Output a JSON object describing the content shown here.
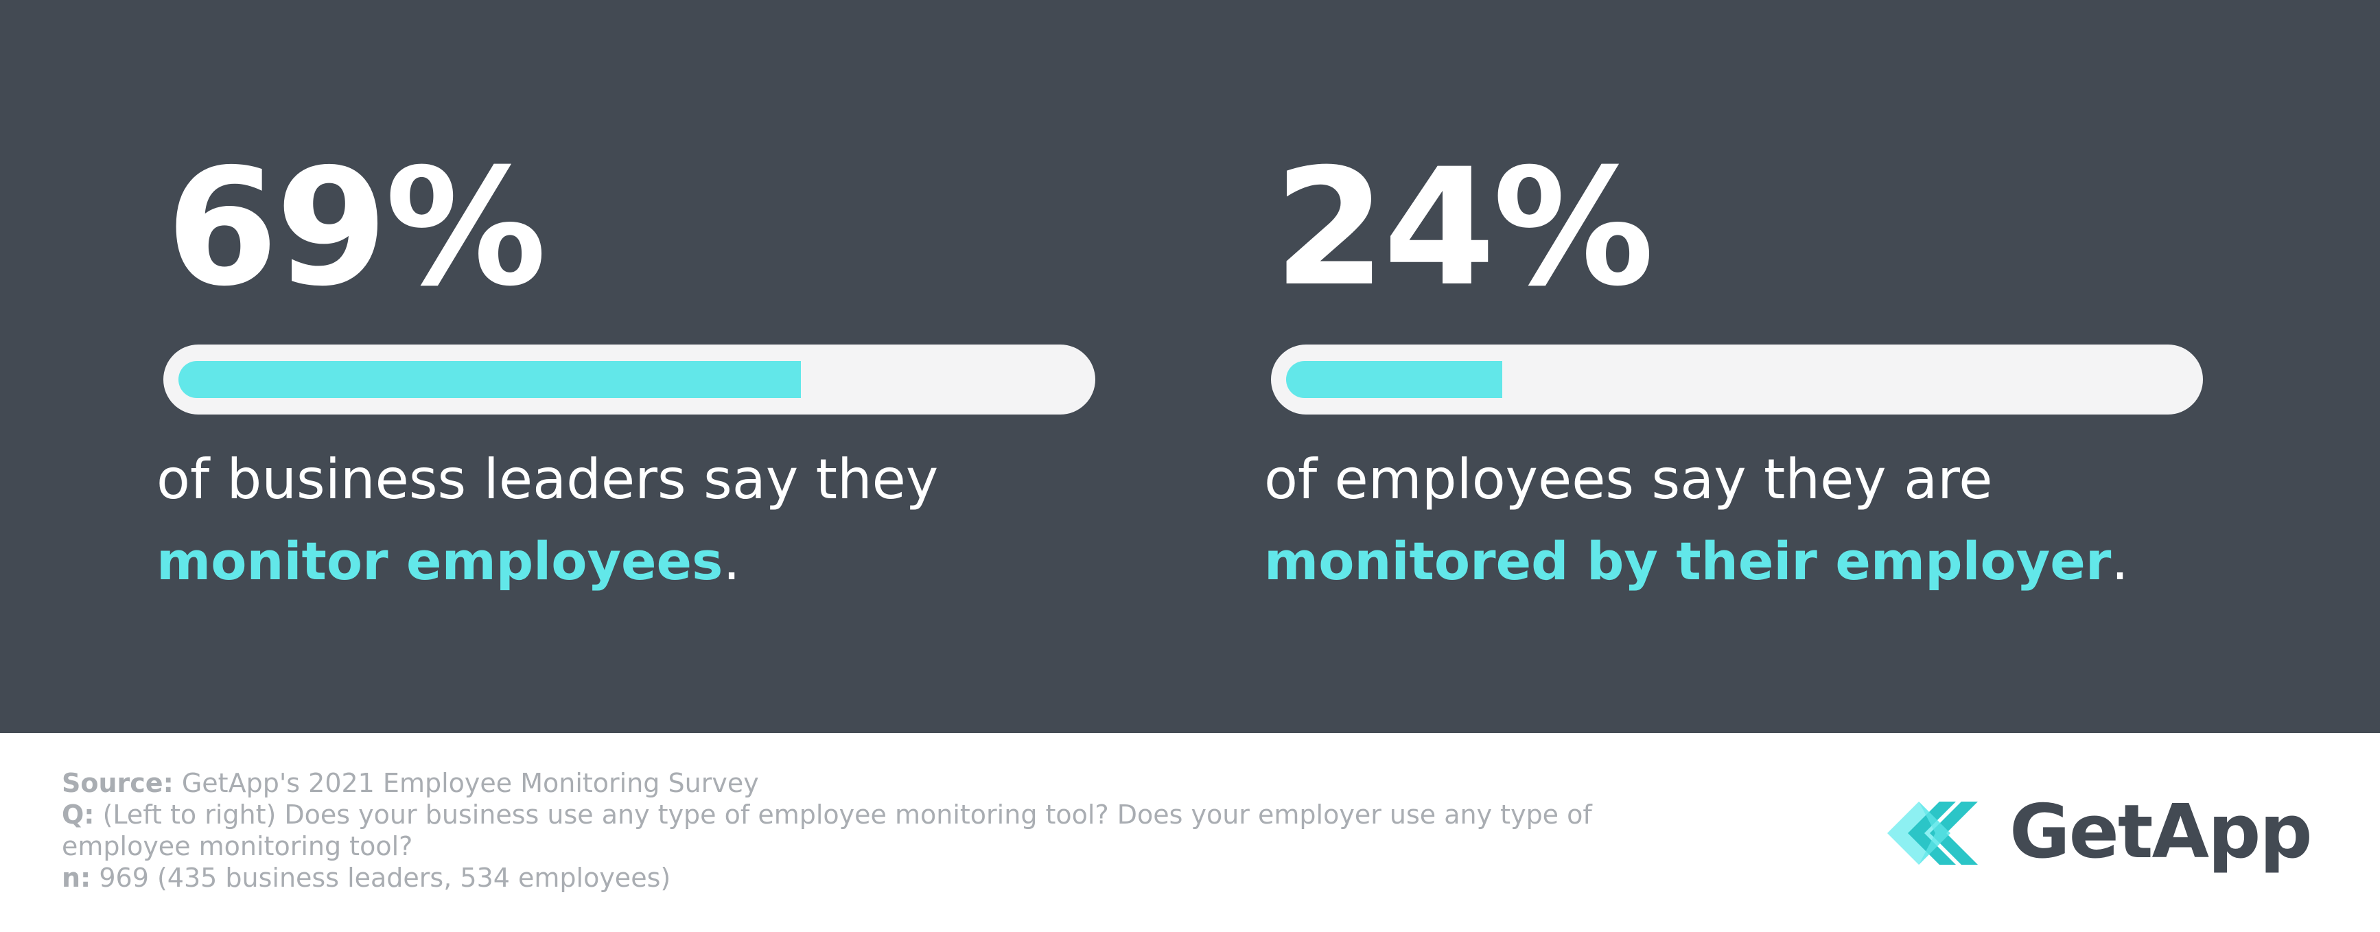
{
  "chart_data": [
    {
      "type": "bar",
      "value": 69,
      "value_label": "69%",
      "max": 100,
      "description_plain": "of business leaders say they",
      "description_highlight": "monitor employees",
      "description_end": "."
    },
    {
      "type": "bar",
      "value": 24,
      "value_label": "24%",
      "max": 100,
      "description_plain": "of employees say they are",
      "description_highlight": "monitored by their employer",
      "description_end": "."
    }
  ],
  "footer": {
    "source_key": "Source:",
    "source_text": "GetApp's 2021 Employee Monitoring Survey",
    "q_key": "Q:",
    "q_text_line1": "(Left to right) Does your business use any type of employee monitoring tool? Does your employer use any type of",
    "q_text_line2": "employee monitoring tool?",
    "n_key": "n:",
    "n_text": "969 (435 business leaders, 534 employees)"
  },
  "logo": {
    "text": "GetApp",
    "icon": "getapp-chevron-icon"
  },
  "colors": {
    "panel": "#434a53",
    "accent": "#62e7e9",
    "track": "#f4f4f5",
    "footer_text": "#a9adb2",
    "logo_text": "#434a53"
  }
}
